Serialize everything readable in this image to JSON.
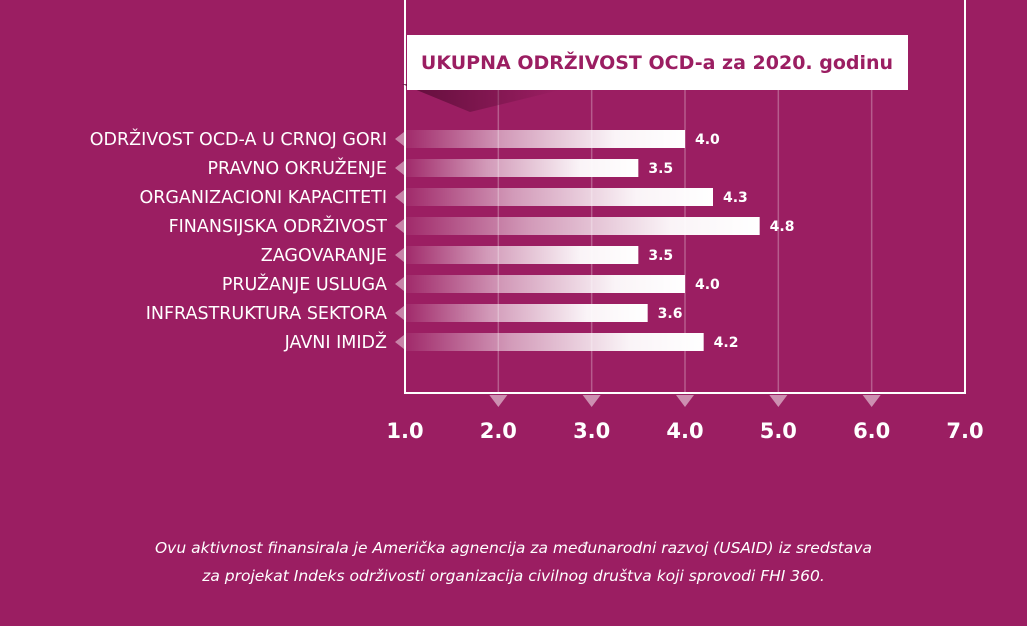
{
  "chart_data": {
    "type": "bar",
    "orientation": "horizontal",
    "title": "UKUPNA ODRŽIVOST OCD-a za 2020. godinu",
    "categories": [
      "ODRŽIVOST OCD-A U CRNOJ GORI",
      "PRAVNO OKRUŽENJE",
      "ORGANIZACIONI KAPACITETI",
      "FINANSIJSKA ODRŽIVOST",
      "ZAGOVARANJE",
      "PRUŽANJE USLUGA",
      "INFRASTRUKTURA SEKTORA",
      "JAVNI IMIDŽ"
    ],
    "values": [
      4.0,
      3.5,
      4.3,
      4.8,
      3.5,
      4.0,
      3.6,
      4.2
    ],
    "value_labels": [
      "4.0",
      "3.5",
      "4.3",
      "4.8",
      "3.5",
      "4.0",
      "3.6",
      "4.2"
    ],
    "xlim": [
      1,
      7
    ],
    "xticks": [
      1,
      2,
      3,
      4,
      5,
      6,
      7
    ],
    "xtick_labels": [
      "1.0",
      "2.0",
      "3.0",
      "4.0",
      "5.0",
      "6.0",
      "7.0"
    ],
    "grid": true,
    "xlabel": "",
    "ylabel": ""
  },
  "footnote": {
    "line1": "Ovu aktivnost finansirala je Američka agnencija za međunarodni razvoj (USAID) iz sredstava",
    "line2": "za projekat Indeks održivosti organizacija civilnog društva koji sprovodi FHI 360."
  },
  "colors": {
    "background": "#9b1e62",
    "bar": "#ffffff",
    "text": "#ffffff",
    "title_text": "#9b1e62"
  }
}
